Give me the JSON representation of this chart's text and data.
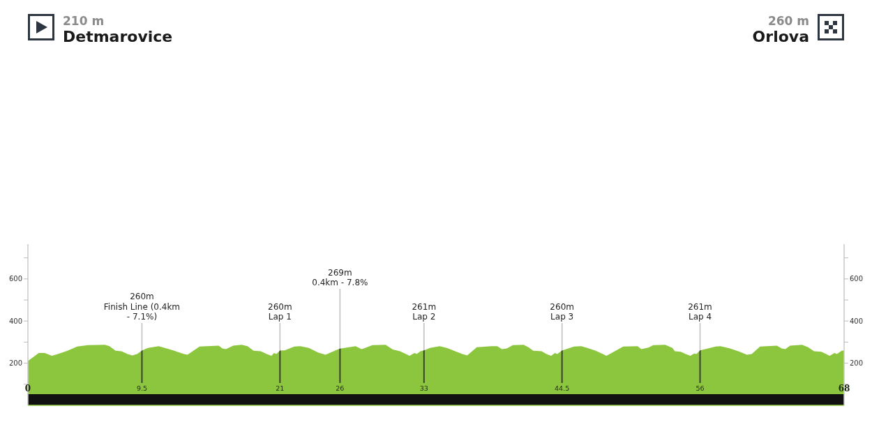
{
  "chart_data": {
    "type": "area",
    "color": "#8cc63f",
    "x": [
      0,
      0.9,
      1.4,
      2.0,
      2.5,
      3.3,
      4.1,
      5.0,
      6.4,
      6.8,
      7.3,
      7.8,
      8.3,
      8.7,
      9.1,
      9.5,
      10.0,
      10.9,
      11.4,
      12.2,
      13.0,
      13.3,
      14.3,
      15.9,
      16.2,
      16.5,
      17.1,
      17.8,
      18.3,
      18.8,
      19.4,
      19.9,
      20.3,
      20.5,
      20.7,
      21.0,
      21.4,
      22.2,
      22.7,
      23.4,
      24.2,
      24.8,
      25.8,
      26.0,
      27.3,
      27.8,
      28.1,
      28.7,
      29.8,
      30.4,
      31.0,
      31.5,
      31.8,
      32.2,
      32.4,
      32.7,
      33.0,
      33.5,
      34.3,
      34.9,
      35.6,
      36.2,
      36.6,
      37.4,
      38.6,
      39.1,
      39.5,
      39.9,
      40.4,
      41.3,
      41.7,
      42.1,
      42.8,
      43.2,
      43.6,
      43.9,
      44.1,
      44.5,
      45.5,
      46.1,
      46.6,
      47.3,
      47.9,
      48.2,
      49.6,
      50.8,
      51.1,
      51.7,
      52.1,
      53.1,
      53.7,
      53.9,
      54.4,
      54.8,
      55.2,
      55.5,
      55.7,
      56.0,
      57.3,
      57.7,
      58.5,
      59.3,
      59.9,
      60.3,
      61.0,
      62.4,
      62.8,
      63.1,
      63.5,
      64.5,
      65.0,
      65.5,
      66.1,
      66.5,
      66.8,
      67.2,
      67.4,
      67.8,
      68.0
    ],
    "values": [
      210,
      248,
      248,
      235,
      243,
      259,
      279,
      286,
      287,
      281,
      259,
      257,
      243,
      237,
      243,
      260,
      272,
      281,
      272,
      259,
      243,
      240,
      279,
      283,
      270,
      267,
      283,
      287,
      281,
      259,
      257,
      243,
      235,
      248,
      243,
      260,
      261,
      279,
      281,
      272,
      250,
      240,
      265,
      269,
      281,
      267,
      272,
      286,
      287,
      265,
      257,
      243,
      235,
      248,
      243,
      257,
      261,
      272,
      281,
      272,
      257,
      243,
      237,
      276,
      281,
      281,
      267,
      270,
      286,
      287,
      276,
      259,
      257,
      243,
      235,
      248,
      243,
      260,
      279,
      281,
      272,
      259,
      243,
      235,
      279,
      281,
      267,
      274,
      286,
      287,
      272,
      257,
      254,
      243,
      235,
      246,
      243,
      261,
      279,
      281,
      270,
      254,
      240,
      243,
      279,
      283,
      270,
      267,
      283,
      287,
      276,
      257,
      254,
      243,
      235,
      248,
      243,
      259,
      260
    ],
    "xlim": [
      0,
      68
    ],
    "xticks": [
      0,
      9.5,
      21,
      26,
      33,
      44.5,
      56,
      68
    ],
    "ylim": [
      0,
      765
    ],
    "yticks": [
      {
        "value": 100,
        "label": null
      },
      200,
      {
        "value": 300,
        "label": null
      },
      400,
      {
        "value": 500,
        "label": null
      },
      600,
      {
        "value": 700,
        "label": null
      }
    ],
    "y2lim": [
      0,
      765
    ],
    "y2ticks": [
      {
        "value": 100,
        "label": null
      },
      200,
      {
        "value": 300,
        "label": null
      },
      400,
      {
        "value": 500,
        "label": null
      },
      600,
      {
        "value": 700,
        "label": null
      }
    ],
    "ref_lines": [
      {
        "axis": "x",
        "value": 9.5,
        "label": "260m\nFinish Line (0.4km\n- 7.1%)"
      },
      {
        "axis": "x",
        "value": 21,
        "label": "260m\nLap 1"
      },
      {
        "axis": "x",
        "value": 26,
        "label": "269m\n0.4km - 7.8%"
      },
      {
        "axis": "x",
        "value": 33,
        "label": "261m\nLap 2"
      },
      {
        "axis": "x",
        "value": 44.5,
        "label": "260m\nLap 3"
      },
      {
        "axis": "x",
        "value": 56,
        "label": "261m\nLap 4"
      }
    ],
    "annotations": [
      "210 m\nDetmarovice",
      "260 m\nOrlova"
    ]
  }
}
